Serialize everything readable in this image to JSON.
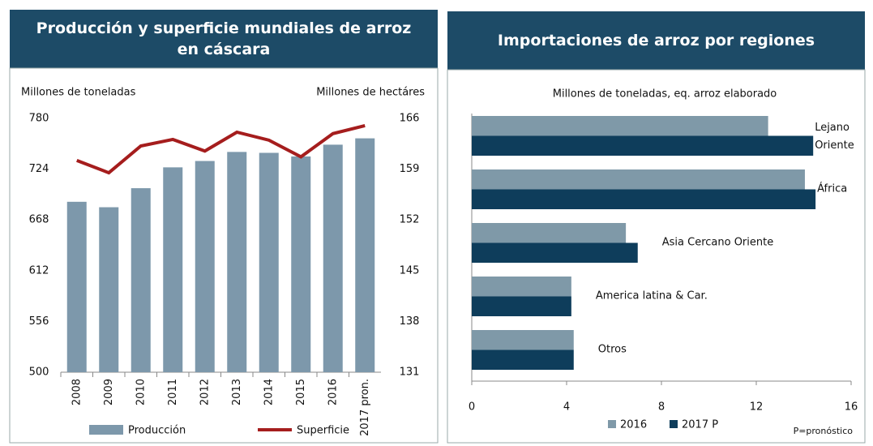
{
  "chart_data": [
    {
      "type": "combo",
      "title": "Producción y superficie mundiales de arroz en cáscara",
      "y_label": "Millones de toneladas",
      "y2_label": "Millones de hectáres",
      "categories": [
        "2008",
        "2009",
        "2010",
        "2011",
        "2012",
        "2013",
        "2014",
        "2015",
        "2016",
        "2017 pron."
      ],
      "ylim": [
        500,
        780
      ],
      "yticks": [
        500,
        556,
        612,
        668,
        724,
        780
      ],
      "y2lim": [
        131,
        166
      ],
      "y2ticks": [
        131,
        138,
        145,
        152,
        159,
        166
      ],
      "series": [
        {
          "name": "Producción",
          "kind": "bar",
          "color": "#7d98ab",
          "values": [
            688,
            682,
            703,
            726,
            733,
            743,
            742,
            738,
            751,
            758
          ]
        },
        {
          "name": "Superficie",
          "kind": "line",
          "axis": "y2",
          "color": "#a51d1d",
          "values": [
            160.2,
            158.5,
            162.2,
            163.1,
            161.5,
            164.1,
            163.0,
            160.7,
            163.9,
            165.0
          ]
        }
      ]
    },
    {
      "type": "barh",
      "title": "Importaciones de arroz por regiones",
      "subtitle": "Millones de toneladas, eq. arroz elaborado",
      "note": "P=pronóstico",
      "categories": [
        "Lejano Oriente",
        "África",
        "Asia Cercano Oriente",
        "America latina & Car.",
        "Otros"
      ],
      "xlim": [
        0,
        16
      ],
      "xticks": [
        0,
        4,
        8,
        12,
        16
      ],
      "series": [
        {
          "name": "2016",
          "color": "#7f99a8",
          "values": [
            12.5,
            14.05,
            6.5,
            4.2,
            4.3
          ]
        },
        {
          "name": "2017 P",
          "color": "#0e3d5b",
          "values": [
            14.4,
            14.5,
            7.0,
            4.2,
            4.3
          ]
        }
      ]
    }
  ]
}
